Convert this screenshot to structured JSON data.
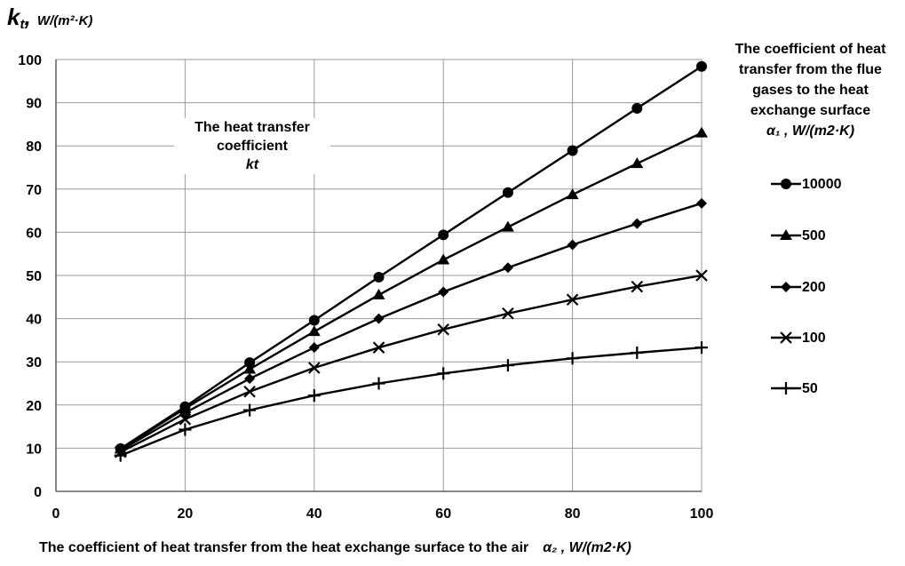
{
  "chart_data": {
    "type": "line",
    "title": "",
    "ylabel_symbol": "k",
    "ylabel_sub": "t",
    "ylabel_unit": "W/(m²·K)",
    "xlabel": "The coefficient of heat transfer from the heat exchange surface to the air",
    "xlabel_unit": "α₂ ,  W/(m2·K)",
    "annotation_line1": "The heat transfer",
    "annotation_line2": "coefficient",
    "annotation_symbol": "kt",
    "legend_title_lines": [
      "The coefficient of heat",
      "transfer from the flue",
      "gases to the heat",
      "exchange surface"
    ],
    "legend_unit": "α₁ , W/(m2·K)",
    "legend_position": "right",
    "xlim": [
      0,
      100
    ],
    "ylim": [
      0,
      100
    ],
    "x_ticks": [
      0,
      20,
      40,
      60,
      80,
      100
    ],
    "y_ticks": [
      0,
      10,
      20,
      30,
      40,
      50,
      60,
      70,
      80,
      90,
      100
    ],
    "grid": true,
    "line_color": "#000000",
    "x": [
      10,
      20,
      30,
      40,
      50,
      60,
      70,
      80,
      90,
      100
    ],
    "series": [
      {
        "name": "10000",
        "marker": "circle",
        "values": [
          9.9,
          19.6,
          29.8,
          39.6,
          49.6,
          59.4,
          69.2,
          78.9,
          88.7,
          98.4
        ]
      },
      {
        "name": "500",
        "marker": "triangle",
        "values": [
          9.8,
          19.2,
          28.3,
          37.0,
          45.5,
          53.6,
          61.2,
          68.7,
          75.9,
          83.0
        ]
      },
      {
        "name": "200",
        "marker": "diamond",
        "values": [
          9.5,
          18.2,
          26.1,
          33.3,
          40.0,
          46.2,
          51.8,
          57.1,
          62.0,
          66.7
        ]
      },
      {
        "name": "100",
        "marker": "x",
        "values": [
          9.1,
          16.7,
          23.1,
          28.6,
          33.3,
          37.5,
          41.2,
          44.4,
          47.4,
          50.0
        ]
      },
      {
        "name": "50",
        "marker": "plus",
        "values": [
          8.3,
          14.3,
          18.8,
          22.2,
          25.0,
          27.3,
          29.2,
          30.8,
          32.1,
          33.3
        ]
      }
    ]
  }
}
